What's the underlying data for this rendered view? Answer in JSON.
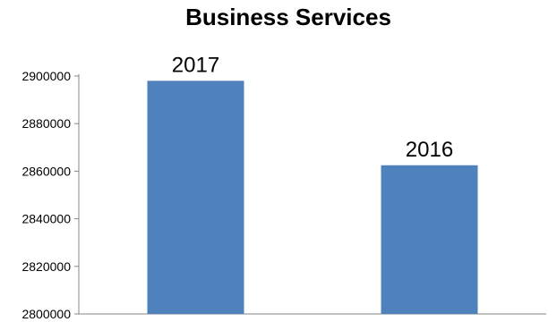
{
  "chart_data": {
    "type": "bar",
    "title": "Business Services",
    "categories": [
      "2017",
      "2016"
    ],
    "values": [
      2898000,
      2862500
    ],
    "data_labels": [
      "2017",
      "2016"
    ],
    "ylim": [
      2800000,
      2900000
    ],
    "y_ticks": [
      "2900000",
      "2880000",
      "2860000",
      "2840000",
      "2820000",
      "2800000"
    ],
    "y_tick_values": [
      2900000,
      2880000,
      2860000,
      2840000,
      2820000,
      2800000
    ],
    "xlabel": "",
    "ylabel": "",
    "grid": false,
    "legend": "none",
    "bar_color": "#4f81bd"
  }
}
